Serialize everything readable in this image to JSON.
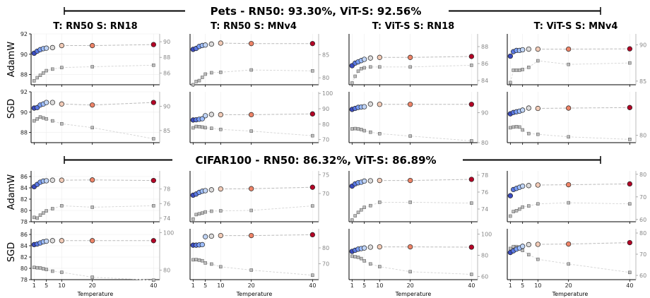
{
  "chart_data": {
    "type": "scatter",
    "sections": [
      {
        "title": "Pets - RN50: 93.30%, ViT-S: 92.56%"
      },
      {
        "title": "CIFAR100 - RN50: 86.32%, ViT-S: 86.89%"
      }
    ],
    "column_titles": [
      "T: RN50   S: RN18",
      "T: RN50   S: MNv4",
      "T: ViT-S   S: RN18",
      "T: ViT-S   S: MNv4"
    ],
    "row_labels": [
      "AdamW",
      "SGD",
      "AdamW",
      "SGD"
    ],
    "xlabel": "Temperature",
    "x": [
      1,
      2,
      3,
      4,
      5,
      7,
      10,
      20,
      40
    ],
    "x_ticks": [
      1,
      5,
      10,
      20,
      40
    ],
    "point_colors": [
      "#3b4cc0",
      "#5977e3",
      "#7b9ff9",
      "#9ebeff",
      "#c0d4f5",
      "#dddcdc",
      "#f2cbb7",
      "#ee8468",
      "#b40426"
    ],
    "dist_color": "#999999",
    "panels": [
      {
        "row": 0,
        "col": 0,
        "ylim": [
          87,
          92
        ],
        "yticks": [
          88,
          90,
          92
        ],
        "rlim": [
          84.5,
          91
        ],
        "rticks": [
          86,
          88,
          90
        ],
        "acc": [
          90.1,
          90.3,
          90.45,
          90.55,
          90.6,
          90.65,
          90.85,
          90.85,
          90.95
        ],
        "dist": [
          85.0,
          85.4,
          85.7,
          86.0,
          86.3,
          86.5,
          86.7,
          86.8,
          87.0
        ]
      },
      {
        "row": 0,
        "col": 1,
        "ylim": [
          79.5,
          90
        ],
        "yticks": [],
        "rlim": [
          78.5,
          89.5
        ],
        "rticks": [
          80,
          85
        ],
        "acc": [
          86.8,
          87.0,
          87.4,
          87.6,
          87.7,
          87.9,
          88.1,
          88.0,
          88.0
        ],
        "dist": [
          78.5,
          79.2,
          79.4,
          80.1,
          80.8,
          81.1,
          81.2,
          81.7,
          81.5
        ]
      },
      {
        "row": 0,
        "col": 2,
        "ylim": [
          83,
          91
        ],
        "yticks": [],
        "rlim": [
          83.5,
          89.5
        ],
        "rticks": [
          84,
          86,
          88
        ],
        "acc": [
          86.0,
          86.4,
          86.6,
          86.8,
          87.0,
          87.2,
          87.3,
          87.3,
          87.45
        ],
        "dist": [
          83.7,
          84.5,
          85.1,
          85.4,
          85.5,
          85.6,
          85.6,
          85.6,
          85.8
        ]
      },
      {
        "row": 0,
        "col": 3,
        "ylim": [
          84,
          92
        ],
        "yticks": [],
        "rlim": [
          84.5,
          91.5
        ],
        "rticks": [
          85,
          90
        ],
        "acc": [
          88.5,
          89.2,
          89.4,
          89.4,
          89.5,
          89.6,
          89.6,
          89.6,
          89.65
        ],
        "dist": [
          84.8,
          86.5,
          86.5,
          86.5,
          86.6,
          86.9,
          87.8,
          87.3,
          87.5
        ]
      },
      {
        "row": 1,
        "col": 0,
        "ylim": [
          87,
          92
        ],
        "yticks": [
          88,
          90,
          92
        ],
        "rlim": [
          82.5,
          93
        ],
        "rticks": [
          85,
          90
        ],
        "acc": [
          90.4,
          90.45,
          90.7,
          90.8,
          90.95,
          90.95,
          90.8,
          90.7,
          90.95
        ],
        "dist": [
          87.0,
          87.4,
          87.8,
          87.6,
          87.4,
          87.0,
          86.4,
          85.6,
          83.3
        ]
      },
      {
        "row": 1,
        "col": 1,
        "ylim": [
          80,
          100
        ],
        "yticks": [],
        "rlim": [
          68,
          101
        ],
        "rticks": [
          70,
          80,
          90,
          100
        ],
        "acc": [
          88.9,
          89.0,
          89.2,
          89.4,
          90.6,
          91.1,
          91.0,
          91.0,
          91.3
        ],
        "dist": [
          77.6,
          78.5,
          78.4,
          78.1,
          77.7,
          77.3,
          76.6,
          75.5,
          72.5
        ]
      },
      {
        "row": 1,
        "col": 2,
        "ylim": [
          80,
          95
        ],
        "yticks": [],
        "rlim": [
          80,
          97
        ],
        "rticks": [
          80,
          90
        ],
        "acc": [
          89.8,
          90.1,
          90.4,
          90.5,
          90.6,
          91.4,
          91.3,
          91.3,
          91.3
        ],
        "dist": [
          84.6,
          84.7,
          84.6,
          84.4,
          84.0,
          83.5,
          83.0,
          82.2,
          80.6
        ]
      },
      {
        "row": 1,
        "col": 3,
        "ylim": [
          80,
          95
        ],
        "yticks": [],
        "rlim": [
          78,
          92
        ],
        "rticks": [
          80
        ],
        "acc": [
          88.5,
          88.9,
          89.1,
          89.3,
          89.6,
          90.2,
          90.1,
          90.2,
          90.35
        ],
        "dist": [
          82.1,
          82.3,
          82.4,
          82.3,
          81.5,
          80.5,
          80.3,
          79.6,
          78.9
        ]
      },
      {
        "row": 2,
        "col": 0,
        "ylim": [
          78,
          87
        ],
        "yticks": [
          78,
          80,
          82,
          84,
          86
        ],
        "rlim": [
          73.5,
          80.5
        ],
        "rticks": [
          74,
          76,
          78
        ],
        "acc": [
          84.2,
          84.6,
          85.0,
          85.2,
          85.25,
          85.35,
          85.35,
          85.4,
          85.3
        ],
        "dist": [
          74.1,
          74.0,
          74.4,
          74.7,
          75.0,
          75.3,
          75.7,
          75.5,
          75.7
        ]
      },
      {
        "row": 2,
        "col": 1,
        "ylim": [
          78,
          87
        ],
        "yticks": [],
        "rlim": [
          62.5,
          76
        ],
        "rticks": [
          70,
          75
        ],
        "acc": [
          82.7,
          82.9,
          83.2,
          83.4,
          83.5,
          83.65,
          83.8,
          83.85,
          84.1
        ],
        "dist": [
          63.2,
          64.4,
          64.6,
          64.8,
          65.1,
          65.3,
          65.4,
          65.5,
          66.7
        ]
      },
      {
        "row": 2,
        "col": 2,
        "ylim": [
          78,
          87
        ],
        "yticks": [],
        "rlim": [
          72.5,
          78.5
        ],
        "rticks": [
          74,
          76,
          78
        ],
        "acc": [
          84.3,
          84.7,
          84.9,
          85.0,
          85.2,
          85.25,
          85.3,
          85.3,
          85.5
        ],
        "dist": [
          72.7,
          73.2,
          73.6,
          73.9,
          74.2,
          74.4,
          74.8,
          74.8,
          74.7
        ]
      },
      {
        "row": 2,
        "col": 3,
        "ylim": [
          78,
          87
        ],
        "yticks": [],
        "rlim": [
          59,
          81.5
        ],
        "rticks": [
          60,
          70,
          80
        ],
        "acc": [
          82.6,
          83.7,
          83.9,
          84.1,
          84.3,
          84.4,
          84.5,
          84.55,
          84.7
        ],
        "dist": [
          61.5,
          63.5,
          63.9,
          64.6,
          65.5,
          66.0,
          66.9,
          67.4,
          66.9
        ]
      },
      {
        "row": 3,
        "col": 0,
        "ylim": [
          78,
          87
        ],
        "yticks": [
          78,
          80,
          82,
          84,
          86
        ],
        "rlim": [
          75,
          102
        ],
        "rticks": [
          80,
          100
        ],
        "acc": [
          84.2,
          84.3,
          84.5,
          84.7,
          84.8,
          84.9,
          84.9,
          84.9,
          84.9
        ],
        "dist": [
          81.5,
          81.3,
          81.2,
          80.8,
          80.4,
          79.5,
          78.9,
          76.3,
          74.7
        ]
      },
      {
        "row": 3,
        "col": 1,
        "ylim": [
          78,
          87
        ],
        "yticks": [],
        "rlim": [
          60,
          92
        ],
        "rticks": [
          70,
          80
        ],
        "acc": [
          84.1,
          84.1,
          84.15,
          84.2,
          85.6,
          85.7,
          85.8,
          85.8,
          85.95
        ],
        "dist": [
          72.5,
          72.6,
          72.3,
          71.9,
          70.5,
          69.8,
          68.1,
          66.0,
          62.8
        ]
      },
      {
        "row": 3,
        "col": 2,
        "ylim": [
          78,
          87
        ],
        "yticks": [],
        "rlim": [
          57,
          105
        ],
        "rticks": [
          60,
          80,
          100
        ],
        "acc": [
          83.0,
          83.2,
          83.4,
          83.5,
          83.6,
          83.75,
          83.8,
          83.8,
          83.75
        ],
        "dist": [
          79.1,
          78.6,
          78.1,
          76.9,
          74.7,
          71.8,
          69.3,
          64.5,
          62.0
        ]
      },
      {
        "row": 3,
        "col": 3,
        "ylim": [
          78,
          87
        ],
        "yticks": [],
        "rlim": [
          58,
          82
        ],
        "rticks": [
          60,
          70,
          80
        ],
        "acc": [
          82.8,
          83.1,
          83.4,
          83.6,
          83.9,
          84.2,
          84.25,
          84.3,
          84.55
        ],
        "dist": [
          72.7,
          73.6,
          73.6,
          73.0,
          71.8,
          69.8,
          67.6,
          65.4,
          61.4
        ]
      }
    ]
  }
}
